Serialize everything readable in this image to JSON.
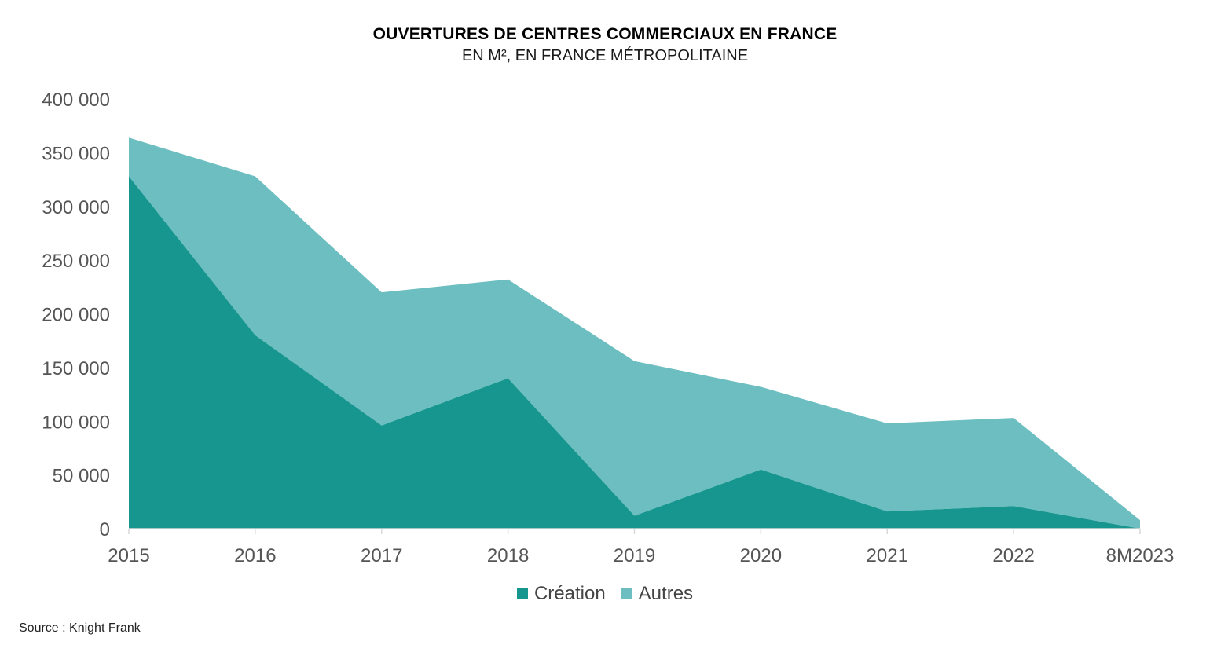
{
  "chart_data": {
    "type": "area",
    "stacked": true,
    "title": "OUVERTURES DE CENTRES COMMERCIAUX EN FRANCE",
    "subtitle": "EN M², EN FRANCE MÉTROPOLITAINE",
    "categories": [
      "2015",
      "2016",
      "2017",
      "2018",
      "2019",
      "2020",
      "2021",
      "2022",
      "8M2023"
    ],
    "series": [
      {
        "name": "Création",
        "color": "#16968f",
        "values": [
          328000,
          180000,
          96000,
          140000,
          12000,
          55000,
          16000,
          21000,
          0
        ]
      },
      {
        "name": "Autres",
        "color": "#6cbec0",
        "values": [
          36000,
          148000,
          124000,
          92000,
          144000,
          77000,
          82000,
          82000,
          8000
        ]
      }
    ],
    "ylim": [
      0,
      400000
    ],
    "yticks": [
      0,
      50000,
      100000,
      150000,
      200000,
      250000,
      300000,
      350000,
      400000
    ],
    "ytick_labels": [
      "0",
      "50 000",
      "100 000",
      "150 000",
      "200 000",
      "250 000",
      "300 000",
      "350 000",
      "400 000"
    ],
    "legend_position": "bottom",
    "grid": false
  },
  "source": "Source : Knight Frank"
}
